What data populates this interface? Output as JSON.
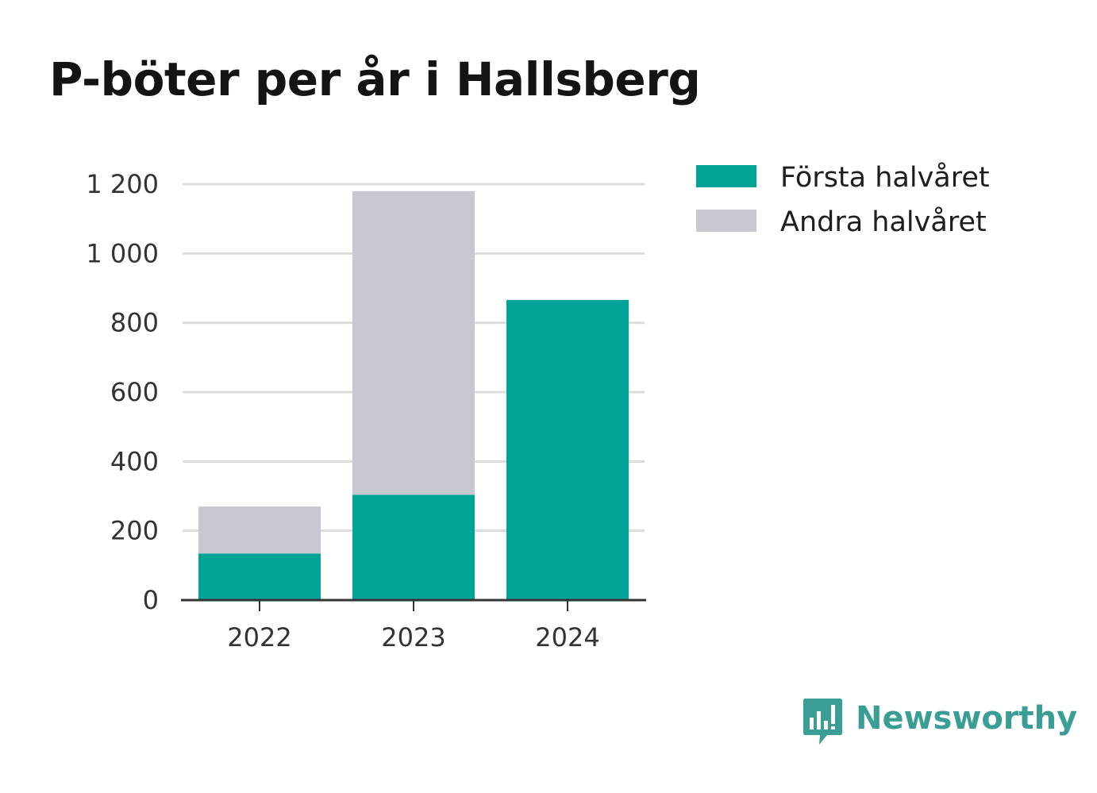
{
  "chart_data": {
    "type": "bar",
    "stacked": true,
    "title": "P-böter per år i Hallsberg",
    "categories": [
      "2022",
      "2023",
      "2024"
    ],
    "series": [
      {
        "name": "Första halvåret",
        "values": [
          134,
          304,
          866
        ],
        "color": "#00a396"
      },
      {
        "name": "Andra halvåret",
        "values": [
          136,
          876,
          0
        ],
        "color": "#c8c8d0"
      }
    ],
    "ylim": [
      0,
      1200
    ],
    "yticks": [
      0,
      200,
      400,
      600,
      800,
      1000,
      1200
    ],
    "ytick_labels": [
      "0",
      "200",
      "400",
      "600",
      "800",
      "1 000",
      "1 200"
    ],
    "grid": true,
    "legend": "top-right"
  },
  "brand": {
    "name": "Newsworthy",
    "icon": "chat-bubble-bar-chart-icon"
  }
}
